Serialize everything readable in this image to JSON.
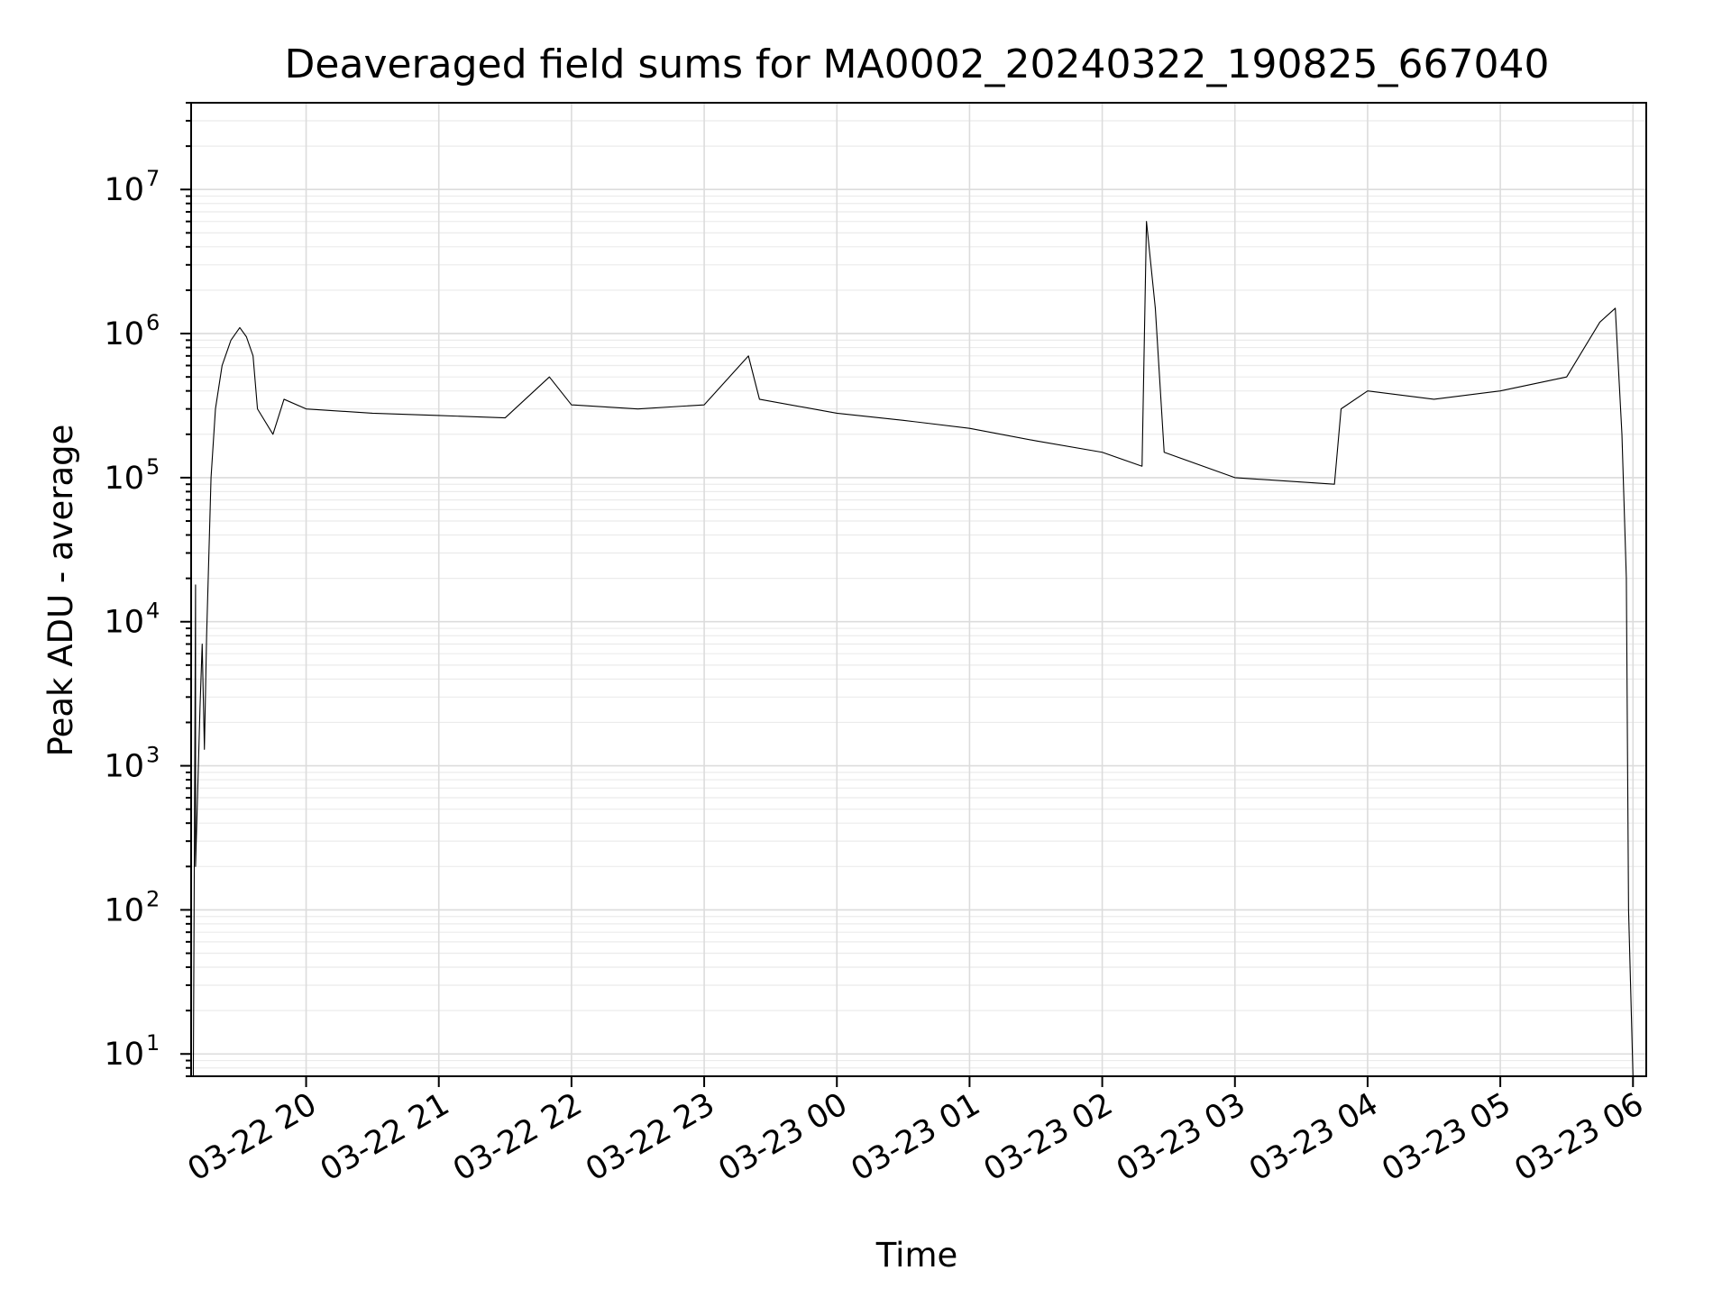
{
  "chart_data": {
    "type": "line",
    "title": "Deaveraged field sums for MA0002_20240322_190825_667040",
    "xlabel": "Time",
    "ylabel": "Peak ADU - average",
    "yscale": "log",
    "ylim": [
      7,
      40000000
    ],
    "xlim": [
      "2024-03-22 19:08",
      "2024-03-23 06:06"
    ],
    "grid": true,
    "grid_minor": true,
    "line_color": "#000000",
    "x_tick_labels": [
      {
        "x": "2024-03-22 20:00",
        "label": "03-22 20"
      },
      {
        "x": "2024-03-22 21:00",
        "label": "03-22 21"
      },
      {
        "x": "2024-03-22 22:00",
        "label": "03-22 22"
      },
      {
        "x": "2024-03-22 23:00",
        "label": "03-22 23"
      },
      {
        "x": "2024-03-23 00:00",
        "label": "03-23 00"
      },
      {
        "x": "2024-03-23 01:00",
        "label": "03-23 01"
      },
      {
        "x": "2024-03-23 02:00",
        "label": "03-23 02"
      },
      {
        "x": "2024-03-23 03:00",
        "label": "03-23 03"
      },
      {
        "x": "2024-03-23 04:00",
        "label": "03-23 04"
      },
      {
        "x": "2024-03-23 05:00",
        "label": "03-23 05"
      },
      {
        "x": "2024-03-23 06:00",
        "label": "03-23 06"
      }
    ],
    "y_ticks": [
      {
        "value": 10,
        "base": "10",
        "exp": "1"
      },
      {
        "value": 100,
        "base": "10",
        "exp": "2"
      },
      {
        "value": 1000,
        "base": "10",
        "exp": "3"
      },
      {
        "value": 10000,
        "base": "10",
        "exp": "4"
      },
      {
        "value": 100000,
        "base": "10",
        "exp": "5"
      },
      {
        "value": 1000000,
        "base": "10",
        "exp": "6"
      },
      {
        "value": 10000000,
        "base": "10",
        "exp": "7"
      }
    ],
    "series": [
      {
        "points": [
          [
            "2024-03-22 19:09",
            7
          ],
          [
            "2024-03-22 19:10",
            18000
          ],
          [
            "2024-03-22 19:10",
            200
          ],
          [
            "2024-03-22 19:11",
            700
          ],
          [
            "2024-03-22 19:12",
            2500
          ],
          [
            "2024-03-22 19:13",
            7000
          ],
          [
            "2024-03-22 19:14",
            1300
          ],
          [
            "2024-03-22 19:15",
            8000
          ],
          [
            "2024-03-22 19:17",
            100000
          ],
          [
            "2024-03-22 19:19",
            300000
          ],
          [
            "2024-03-22 19:22",
            600000
          ],
          [
            "2024-03-22 19:26",
            900000
          ],
          [
            "2024-03-22 19:30",
            1100000
          ],
          [
            "2024-03-22 19:33",
            950000
          ],
          [
            "2024-03-22 19:36",
            700000
          ],
          [
            "2024-03-22 19:38",
            300000
          ],
          [
            "2024-03-22 19:45",
            200000
          ],
          [
            "2024-03-22 19:50",
            350000
          ],
          [
            "2024-03-22 20:00",
            300000
          ],
          [
            "2024-03-22 20:30",
            280000
          ],
          [
            "2024-03-22 21:00",
            270000
          ],
          [
            "2024-03-22 21:30",
            260000
          ],
          [
            "2024-03-22 21:50",
            500000
          ],
          [
            "2024-03-22 22:00",
            320000
          ],
          [
            "2024-03-22 22:30",
            300000
          ],
          [
            "2024-03-22 23:00",
            320000
          ],
          [
            "2024-03-22 23:20",
            700000
          ],
          [
            "2024-03-22 23:25",
            350000
          ],
          [
            "2024-03-23 00:00",
            280000
          ],
          [
            "2024-03-23 00:30",
            250000
          ],
          [
            "2024-03-23 01:00",
            220000
          ],
          [
            "2024-03-23 01:30",
            180000
          ],
          [
            "2024-03-23 02:00",
            150000
          ],
          [
            "2024-03-23 02:18",
            120000
          ],
          [
            "2024-03-23 02:20",
            6000000
          ],
          [
            "2024-03-23 02:24",
            1500000
          ],
          [
            "2024-03-23 02:28",
            150000
          ],
          [
            "2024-03-23 03:00",
            100000
          ],
          [
            "2024-03-23 03:45",
            90000
          ],
          [
            "2024-03-23 03:48",
            300000
          ],
          [
            "2024-03-23 04:00",
            400000
          ],
          [
            "2024-03-23 04:30",
            350000
          ],
          [
            "2024-03-23 05:00",
            400000
          ],
          [
            "2024-03-23 05:30",
            500000
          ],
          [
            "2024-03-23 05:45",
            1200000
          ],
          [
            "2024-03-23 05:52",
            1500000
          ],
          [
            "2024-03-23 05:55",
            200000
          ],
          [
            "2024-03-23 05:57",
            20000
          ],
          [
            "2024-03-23 05:58",
            100
          ],
          [
            "2024-03-23 06:00",
            7
          ]
        ]
      }
    ]
  }
}
